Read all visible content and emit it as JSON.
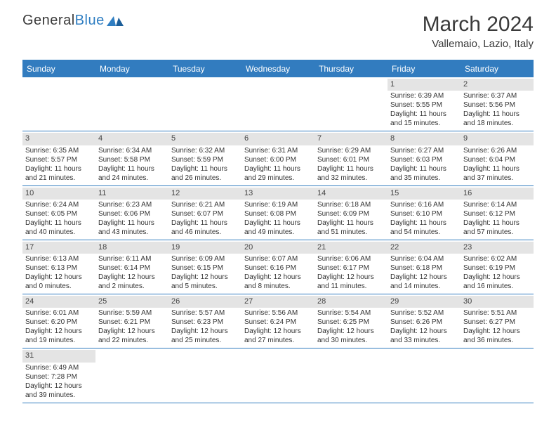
{
  "brand": {
    "part1": "General",
    "part2": "Blue"
  },
  "title": "March 2024",
  "location": "Vallemaio, Lazio, Italy",
  "colors": {
    "accent": "#327cbf",
    "dayHeaderBg": "#e4e4e4",
    "text": "#333333",
    "background": "#ffffff"
  },
  "dayNames": [
    "Sunday",
    "Monday",
    "Tuesday",
    "Wednesday",
    "Thursday",
    "Friday",
    "Saturday"
  ],
  "weeks": [
    [
      null,
      null,
      null,
      null,
      null,
      {
        "n": "1",
        "sr": "Sunrise: 6:39 AM",
        "ss": "Sunset: 5:55 PM",
        "dl": "Daylight: 11 hours and 15 minutes."
      },
      {
        "n": "2",
        "sr": "Sunrise: 6:37 AM",
        "ss": "Sunset: 5:56 PM",
        "dl": "Daylight: 11 hours and 18 minutes."
      }
    ],
    [
      {
        "n": "3",
        "sr": "Sunrise: 6:35 AM",
        "ss": "Sunset: 5:57 PM",
        "dl": "Daylight: 11 hours and 21 minutes."
      },
      {
        "n": "4",
        "sr": "Sunrise: 6:34 AM",
        "ss": "Sunset: 5:58 PM",
        "dl": "Daylight: 11 hours and 24 minutes."
      },
      {
        "n": "5",
        "sr": "Sunrise: 6:32 AM",
        "ss": "Sunset: 5:59 PM",
        "dl": "Daylight: 11 hours and 26 minutes."
      },
      {
        "n": "6",
        "sr": "Sunrise: 6:31 AM",
        "ss": "Sunset: 6:00 PM",
        "dl": "Daylight: 11 hours and 29 minutes."
      },
      {
        "n": "7",
        "sr": "Sunrise: 6:29 AM",
        "ss": "Sunset: 6:01 PM",
        "dl": "Daylight: 11 hours and 32 minutes."
      },
      {
        "n": "8",
        "sr": "Sunrise: 6:27 AM",
        "ss": "Sunset: 6:03 PM",
        "dl": "Daylight: 11 hours and 35 minutes."
      },
      {
        "n": "9",
        "sr": "Sunrise: 6:26 AM",
        "ss": "Sunset: 6:04 PM",
        "dl": "Daylight: 11 hours and 37 minutes."
      }
    ],
    [
      {
        "n": "10",
        "sr": "Sunrise: 6:24 AM",
        "ss": "Sunset: 6:05 PM",
        "dl": "Daylight: 11 hours and 40 minutes."
      },
      {
        "n": "11",
        "sr": "Sunrise: 6:23 AM",
        "ss": "Sunset: 6:06 PM",
        "dl": "Daylight: 11 hours and 43 minutes."
      },
      {
        "n": "12",
        "sr": "Sunrise: 6:21 AM",
        "ss": "Sunset: 6:07 PM",
        "dl": "Daylight: 11 hours and 46 minutes."
      },
      {
        "n": "13",
        "sr": "Sunrise: 6:19 AM",
        "ss": "Sunset: 6:08 PM",
        "dl": "Daylight: 11 hours and 49 minutes."
      },
      {
        "n": "14",
        "sr": "Sunrise: 6:18 AM",
        "ss": "Sunset: 6:09 PM",
        "dl": "Daylight: 11 hours and 51 minutes."
      },
      {
        "n": "15",
        "sr": "Sunrise: 6:16 AM",
        "ss": "Sunset: 6:10 PM",
        "dl": "Daylight: 11 hours and 54 minutes."
      },
      {
        "n": "16",
        "sr": "Sunrise: 6:14 AM",
        "ss": "Sunset: 6:12 PM",
        "dl": "Daylight: 11 hours and 57 minutes."
      }
    ],
    [
      {
        "n": "17",
        "sr": "Sunrise: 6:13 AM",
        "ss": "Sunset: 6:13 PM",
        "dl": "Daylight: 12 hours and 0 minutes."
      },
      {
        "n": "18",
        "sr": "Sunrise: 6:11 AM",
        "ss": "Sunset: 6:14 PM",
        "dl": "Daylight: 12 hours and 2 minutes."
      },
      {
        "n": "19",
        "sr": "Sunrise: 6:09 AM",
        "ss": "Sunset: 6:15 PM",
        "dl": "Daylight: 12 hours and 5 minutes."
      },
      {
        "n": "20",
        "sr": "Sunrise: 6:07 AM",
        "ss": "Sunset: 6:16 PM",
        "dl": "Daylight: 12 hours and 8 minutes."
      },
      {
        "n": "21",
        "sr": "Sunrise: 6:06 AM",
        "ss": "Sunset: 6:17 PM",
        "dl": "Daylight: 12 hours and 11 minutes."
      },
      {
        "n": "22",
        "sr": "Sunrise: 6:04 AM",
        "ss": "Sunset: 6:18 PM",
        "dl": "Daylight: 12 hours and 14 minutes."
      },
      {
        "n": "23",
        "sr": "Sunrise: 6:02 AM",
        "ss": "Sunset: 6:19 PM",
        "dl": "Daylight: 12 hours and 16 minutes."
      }
    ],
    [
      {
        "n": "24",
        "sr": "Sunrise: 6:01 AM",
        "ss": "Sunset: 6:20 PM",
        "dl": "Daylight: 12 hours and 19 minutes."
      },
      {
        "n": "25",
        "sr": "Sunrise: 5:59 AM",
        "ss": "Sunset: 6:21 PM",
        "dl": "Daylight: 12 hours and 22 minutes."
      },
      {
        "n": "26",
        "sr": "Sunrise: 5:57 AM",
        "ss": "Sunset: 6:23 PM",
        "dl": "Daylight: 12 hours and 25 minutes."
      },
      {
        "n": "27",
        "sr": "Sunrise: 5:56 AM",
        "ss": "Sunset: 6:24 PM",
        "dl": "Daylight: 12 hours and 27 minutes."
      },
      {
        "n": "28",
        "sr": "Sunrise: 5:54 AM",
        "ss": "Sunset: 6:25 PM",
        "dl": "Daylight: 12 hours and 30 minutes."
      },
      {
        "n": "29",
        "sr": "Sunrise: 5:52 AM",
        "ss": "Sunset: 6:26 PM",
        "dl": "Daylight: 12 hours and 33 minutes."
      },
      {
        "n": "30",
        "sr": "Sunrise: 5:51 AM",
        "ss": "Sunset: 6:27 PM",
        "dl": "Daylight: 12 hours and 36 minutes."
      }
    ],
    [
      {
        "n": "31",
        "sr": "Sunrise: 6:49 AM",
        "ss": "Sunset: 7:28 PM",
        "dl": "Daylight: 12 hours and 39 minutes."
      },
      null,
      null,
      null,
      null,
      null,
      null
    ]
  ]
}
